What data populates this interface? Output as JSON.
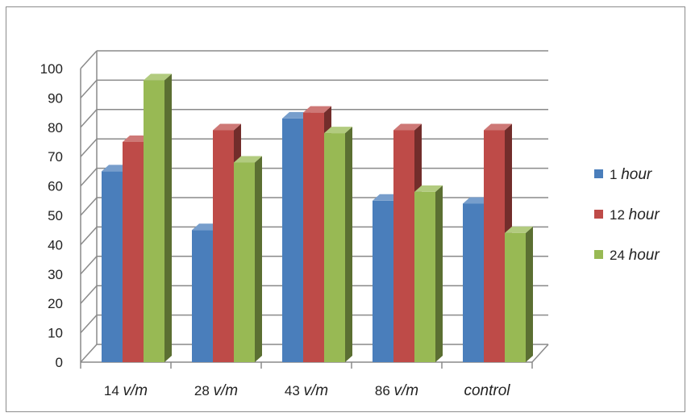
{
  "chart_data": {
    "type": "bar",
    "style": "3d-clustered-column",
    "categories": [
      {
        "num": "14",
        "unit": "v/m"
      },
      {
        "num": "28",
        "unit": "v/m"
      },
      {
        "num": "43",
        "unit": "v/m"
      },
      {
        "num": "86",
        "unit": "v/m"
      },
      {
        "num": "",
        "unit": "control"
      }
    ],
    "series": [
      {
        "name_num": "1",
        "name_unit": "hour",
        "color": "#4a7ebb",
        "values": [
          65,
          45,
          83,
          55,
          54
        ]
      },
      {
        "name_num": "12",
        "name_unit": "hour",
        "color": "#be4b48",
        "values": [
          75,
          79,
          85,
          79,
          79
        ]
      },
      {
        "name_num": "24",
        "name_unit": "hour",
        "color": "#98b954",
        "values": [
          96,
          68,
          78,
          58,
          44
        ]
      }
    ],
    "ylim": [
      0,
      100
    ],
    "yticks": [
      0,
      10,
      20,
      30,
      40,
      50,
      60,
      70,
      80,
      90,
      100
    ],
    "grid": true,
    "legend_position": "right"
  }
}
